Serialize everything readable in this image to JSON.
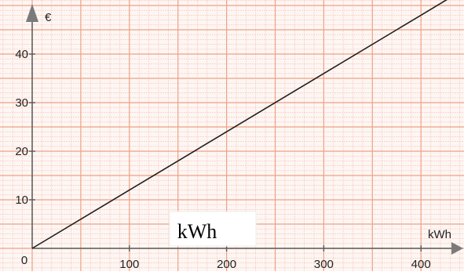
{
  "colors": {
    "background": "#fdf6f3",
    "minor_grid": "#f7c4b8",
    "major_grid": "#f0a184",
    "axis": "#5a5a5a",
    "line": "#1f1f1f",
    "arrow": "#7a7a7a"
  },
  "chart_data": {
    "type": "line",
    "title": "",
    "xlabel": "kWh",
    "ylabel": "€",
    "origin_label": "0",
    "overlay_label": "kWh",
    "xlim": [
      0,
      450
    ],
    "ylim": [
      0,
      51
    ],
    "x_ticks": [
      {
        "value": 100,
        "label": "100"
      },
      {
        "value": 200,
        "label": "200"
      },
      {
        "value": 300,
        "label": "300"
      },
      {
        "value": 400,
        "label": "400"
      }
    ],
    "y_ticks": [
      {
        "value": 10,
        "label": "10"
      },
      {
        "value": 20,
        "label": "20"
      },
      {
        "value": 30,
        "label": "30"
      },
      {
        "value": 40,
        "label": "40"
      }
    ],
    "minor_step_x": 10,
    "minor_step_y": 1,
    "major_step_x": 50,
    "major_step_y": 5,
    "grid": true,
    "series": [
      {
        "x": [
          0,
          100,
          200,
          300,
          400,
          440
        ],
        "y": [
          0,
          12,
          24,
          36,
          48,
          52.8
        ]
      }
    ]
  }
}
